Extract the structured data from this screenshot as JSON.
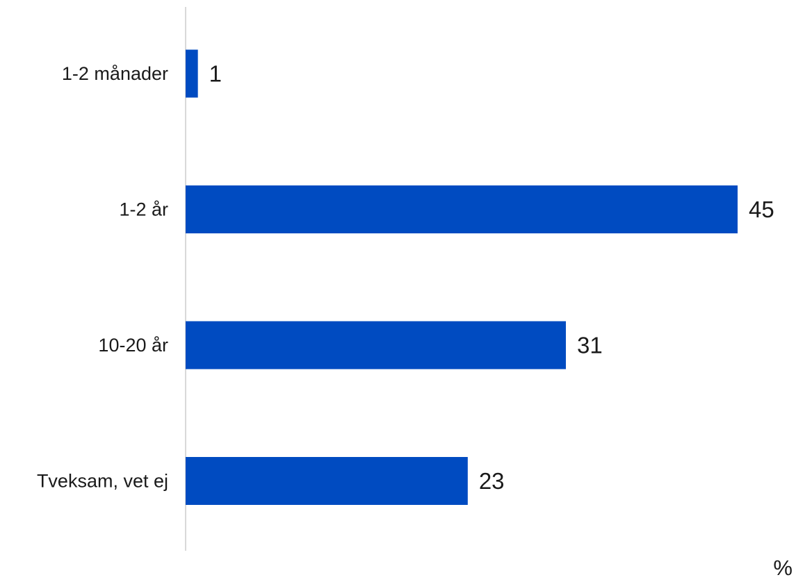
{
  "chart_data": {
    "type": "bar",
    "orientation": "horizontal",
    "categories": [
      "1-2 månader",
      "1-2 år",
      "10-20 år",
      "Tveksam, vet ej"
    ],
    "values": [
      1,
      45,
      31,
      23
    ],
    "value_labels": [
      "1",
      "45",
      "31",
      "23"
    ],
    "title": "",
    "xlabel": "",
    "ylabel": "",
    "unit": "%",
    "xlim": [
      0,
      45
    ],
    "grid": false,
    "legend": "none",
    "bar_color": "#004BC1",
    "axis_color": "#d9d9d9"
  }
}
